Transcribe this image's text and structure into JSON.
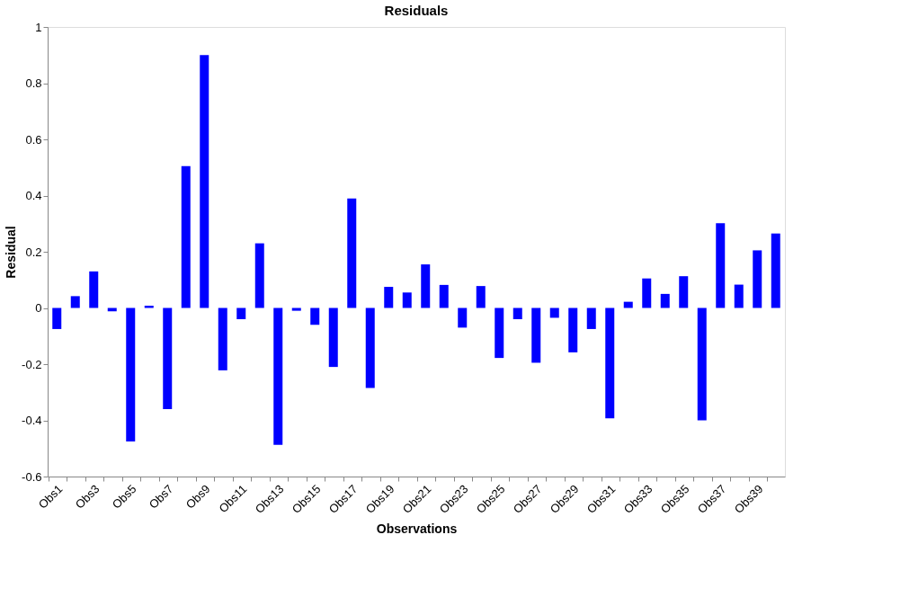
{
  "chart_data": {
    "type": "bar",
    "title": "Residuals",
    "xlabel": "Observations",
    "ylabel": "Residual",
    "categories": [
      "Obs1",
      null,
      "Obs3",
      null,
      "Obs5",
      null,
      "Obs7",
      null,
      "Obs9",
      null,
      "Obs11",
      null,
      "Obs13",
      null,
      "Obs15",
      null,
      "Obs17",
      null,
      "Obs19",
      null,
      "Obs21",
      null,
      "Obs23",
      null,
      "Obs25",
      null,
      "Obs27",
      null,
      "Obs29",
      null,
      "Obs31",
      null,
      "Obs33",
      null,
      "Obs35",
      null,
      "Obs37",
      null,
      "Obs39",
      null
    ],
    "values": [
      -0.075,
      0.042,
      0.13,
      -0.012,
      -0.475,
      0.008,
      -0.36,
      0.505,
      0.9,
      -0.222,
      -0.04,
      0.23,
      -0.487,
      -0.01,
      -0.06,
      -0.21,
      0.39,
      -0.285,
      0.075,
      0.055,
      0.155,
      0.082,
      -0.07,
      0.078,
      -0.178,
      -0.04,
      -0.195,
      -0.035,
      -0.158,
      -0.075,
      -0.393,
      0.022,
      0.105,
      0.05,
      0.113,
      -0.4,
      0.302,
      0.083,
      0.205,
      0.265
    ],
    "color": "#0000ff",
    "ylim": [
      -0.6,
      1
    ],
    "yticks": [
      -0.6,
      -0.4,
      -0.2,
      0,
      0.2,
      0.4,
      0.6,
      0.8,
      1
    ],
    "grid": false
  }
}
